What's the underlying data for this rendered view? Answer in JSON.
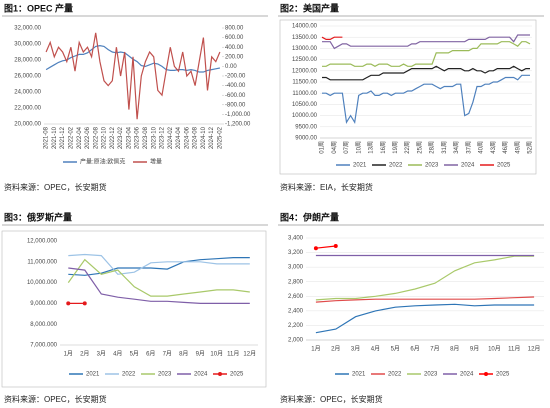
{
  "chart_data": [
    {
      "type": "line",
      "title": "图1：OPEC 产量",
      "source": "资料来源：OPEC，长安期货",
      "grid": false,
      "categories": [
        "2021-08",
        null,
        "2021-10",
        null,
        "2021-12",
        null,
        "2022-02",
        null,
        "2022-04",
        null,
        "2022-06",
        null,
        "2022-08",
        null,
        "2022-10",
        null,
        "2022-12",
        null,
        "2023-02",
        null,
        "2023-04",
        null,
        "2023-06",
        null,
        "2023-08",
        null,
        "2023-10",
        null,
        "2023-12",
        null,
        "2024-02",
        null,
        "2024-04",
        null,
        "2024-06",
        null,
        "2024-08",
        null,
        "2024-10",
        null,
        "2024-12",
        null,
        "2025-02"
      ],
      "ylim": [
        20000,
        32000
      ],
      "yticks": [
        {
          "value": 20000,
          "label": "20,000.00"
        },
        {
          "value": 22000,
          "label": "22,000.00"
        },
        {
          "value": 24000,
          "label": "24,000.00"
        },
        {
          "value": 26000,
          "label": "26,000.00"
        },
        {
          "value": 28000,
          "label": "28,000.00"
        },
        {
          "value": 30000,
          "label": "30,000.00"
        },
        {
          "value": 32000,
          "label": "32,000.00"
        }
      ],
      "y2lim": [
        -1200,
        800
      ],
      "y2ticks": [
        {
          "value": -1200,
          "label": "-1,200.00"
        },
        {
          "value": -1000,
          "label": "-1,000.00"
        },
        {
          "value": -800,
          "label": "-800.00"
        },
        {
          "value": -600,
          "label": "-600.00"
        },
        {
          "value": -400,
          "label": "-400.00"
        },
        {
          "value": -200,
          "label": "-200.00"
        },
        {
          "value": 0,
          "label": "0.00"
        },
        {
          "value": 200,
          "label": "200.00"
        },
        {
          "value": 400,
          "label": "400.00"
        },
        {
          "value": 600,
          "label": "600.00"
        },
        {
          "value": 800,
          "label": "800.00"
        }
      ],
      "series": [
        {
          "name": "产量:原油:欧佩克",
          "color": "#4f81bd",
          "values": [
            26800,
            27100,
            27400,
            27700,
            27900,
            28000,
            28300,
            28500,
            28700,
            28700,
            28900,
            29300,
            29700,
            29800,
            29700,
            29300,
            29000,
            28900,
            29000,
            28900,
            28500,
            28100,
            27800,
            27300,
            27200,
            27400,
            27600,
            27500,
            27200,
            26800,
            26700,
            26700,
            26800,
            26800,
            26700,
            26800,
            26700,
            26500,
            26500,
            26700,
            26800,
            26900,
            27000
          ]
        },
        {
          "name": "增量",
          "color": "#c0504d",
          "axis": "y2",
          "values": [
            300,
            500,
            200,
            400,
            300,
            100,
            400,
            -100,
            500,
            300,
            400,
            200,
            700,
            100,
            -300,
            -400,
            -300,
            400,
            -200,
            300,
            -900,
            200,
            -1100,
            -200,
            100,
            300,
            200,
            -500,
            -600,
            -100,
            400,
            0,
            -100,
            300,
            -200,
            -100,
            -400,
            100,
            600,
            -500,
            200,
            100,
            300
          ]
        }
      ]
    },
    {
      "type": "line",
      "title": "图2：美国产量",
      "source": "资料来源：EIA，长安期货",
      "grid": true,
      "categories": [
        "01周",
        null,
        null,
        "04周",
        null,
        null,
        "07周",
        null,
        null,
        "10周",
        null,
        null,
        "13周",
        null,
        null,
        "16周",
        null,
        null,
        "19周",
        null,
        null,
        "22周",
        null,
        null,
        "25周",
        null,
        null,
        "28周",
        null,
        null,
        "31周",
        null,
        null,
        "34周",
        null,
        null,
        "37周",
        null,
        null,
        "40周",
        null,
        null,
        "43周",
        null,
        null,
        "46周",
        null,
        null,
        "49周",
        null,
        null,
        "52周"
      ],
      "ylim": [
        9000,
        14000
      ],
      "yticks": [
        {
          "value": 9000,
          "label": "9000.00"
        },
        {
          "value": 9500,
          "label": "9500.00"
        },
        {
          "value": 10000,
          "label": "10000.00"
        },
        {
          "value": 10500,
          "label": "10500.00"
        },
        {
          "value": 11000,
          "label": "11000.00"
        },
        {
          "value": 11500,
          "label": "11500.00"
        },
        {
          "value": 12000,
          "label": "12000.00"
        },
        {
          "value": 12500,
          "label": "12500.00"
        },
        {
          "value": 13000,
          "label": "13000.00"
        },
        {
          "value": 13500,
          "label": "13500.00"
        },
        {
          "value": 14000,
          "label": "14000.00"
        }
      ],
      "series": [
        {
          "name": "2021",
          "color": "#4f81bd",
          "values": [
            11000,
            11000,
            10900,
            11000,
            11000,
            11000,
            9700,
            10000,
            9700,
            10900,
            11000,
            11000,
            11100,
            10900,
            10900,
            11000,
            11000,
            10900,
            11000,
            11000,
            11000,
            11100,
            11100,
            11200,
            11300,
            11400,
            11400,
            11400,
            11300,
            11200,
            11300,
            11300,
            11300,
            11400,
            11400,
            10000,
            10100,
            10600,
            11300,
            11300,
            11400,
            11400,
            11500,
            11500,
            11600,
            11700,
            11700,
            11700,
            11600,
            11800,
            11800,
            11800
          ]
        },
        {
          "name": "2022",
          "color": "#222222",
          "values": [
            11700,
            11700,
            11600,
            11600,
            11600,
            11600,
            11600,
            11600,
            11600,
            11600,
            11600,
            11700,
            11800,
            11800,
            11800,
            11900,
            11900,
            11900,
            11900,
            11900,
            11900,
            12000,
            12100,
            12100,
            12100,
            12100,
            12100,
            12100,
            12200,
            12100,
            12000,
            12100,
            12100,
            12100,
            12100,
            12000,
            12000,
            12100,
            12000,
            12000,
            11900,
            12000,
            12000,
            12100,
            12100,
            12100,
            12100,
            12200,
            12100,
            12000,
            12100,
            12100
          ]
        },
        {
          "name": "2023",
          "color": "#9bbb59",
          "values": [
            12200,
            12200,
            12300,
            12300,
            12300,
            12300,
            12300,
            12300,
            12200,
            12200,
            12200,
            12300,
            12300,
            12200,
            12300,
            12300,
            12300,
            12200,
            12200,
            12200,
            12300,
            12200,
            12200,
            12300,
            12300,
            12300,
            12300,
            12300,
            12800,
            12800,
            12800,
            12800,
            12900,
            12900,
            12900,
            12900,
            12900,
            13000,
            13000,
            13200,
            13200,
            13200,
            13200,
            13200,
            13300,
            13300,
            13300,
            13200,
            13100,
            13300,
            13300,
            13200
          ]
        },
        {
          "name": "2024",
          "color": "#8064a2",
          "values": [
            13300,
            13300,
            13300,
            13000,
            13100,
            13200,
            13200,
            13100,
            13100,
            13100,
            13100,
            13100,
            13100,
            13100,
            13100,
            13100,
            13100,
            13100,
            13100,
            13100,
            13100,
            13100,
            13200,
            13200,
            13300,
            13300,
            13300,
            13300,
            13300,
            13300,
            13300,
            13300,
            13300,
            13300,
            13300,
            13300,
            13400,
            13400,
            13400,
            13400,
            13400,
            13500,
            13500,
            13500,
            13500,
            13500,
            13500,
            13300,
            13600,
            13600,
            13600,
            13600
          ]
        },
        {
          "name": "2025",
          "color": "#e41a1c",
          "values": [
            13500,
            13400,
            13400,
            13500,
            13500,
            13500,
            null,
            null,
            null,
            null,
            null,
            null,
            null,
            null,
            null,
            null,
            null,
            null,
            null,
            null,
            null,
            null,
            null,
            null,
            null,
            null,
            null,
            null,
            null,
            null,
            null,
            null,
            null,
            null,
            null,
            null,
            null,
            null,
            null,
            null,
            null,
            null,
            null,
            null,
            null,
            null,
            null,
            null,
            null,
            null,
            null,
            null
          ]
        }
      ]
    },
    {
      "type": "line",
      "title": "图3：俄罗斯产量",
      "source": "资料来源：OPEC，长安期货",
      "grid": false,
      "categories": [
        "1月",
        "2月",
        "3月",
        "4月",
        "5月",
        "6月",
        "7月",
        "8月",
        "9月",
        "10月",
        "11月",
        "12月"
      ],
      "ylim": [
        7000,
        12000
      ],
      "yticks": [
        {
          "value": 7000,
          "label": "7,000.000"
        },
        {
          "value": 8000,
          "label": "8,000.000"
        },
        {
          "value": 9000,
          "label": "9,000.000"
        },
        {
          "value": 10000,
          "label": "10,000.000"
        },
        {
          "value": 11000,
          "label": "11,000.000"
        },
        {
          "value": 12000,
          "label": "12,000.000"
        }
      ],
      "series": [
        {
          "name": "2021",
          "color": "#2e75b6",
          "values": [
            10400,
            10350,
            10450,
            10700,
            10700,
            10700,
            10650,
            11000,
            11100,
            11150,
            11200,
            11200
          ]
        },
        {
          "name": "2022",
          "color": "#9dc3e6",
          "values": [
            11300,
            11350,
            11300,
            10400,
            10500,
            10950,
            11000,
            11000,
            11000,
            10900,
            10900,
            10900
          ]
        },
        {
          "name": "2023",
          "color": "#a9c96a",
          "values": [
            10000,
            11100,
            10400,
            10600,
            9800,
            9350,
            9350,
            9450,
            9550,
            9650,
            9650,
            9550
          ]
        },
        {
          "name": "2024",
          "color": "#7f5fa8",
          "values": [
            10700,
            10600,
            9450,
            9300,
            9200,
            9100,
            9100,
            9050,
            9000,
            9000,
            9000,
            9000
          ]
        },
        {
          "name": "2025",
          "color": "#e41a1c",
          "marker": "circle",
          "values": [
            9000,
            9000,
            null,
            null,
            null,
            null,
            null,
            null,
            null,
            null,
            null,
            null
          ]
        }
      ]
    },
    {
      "type": "line",
      "title": "图4：伊朗产量",
      "source": "资料来源：OPEC，长安期货",
      "grid": true,
      "categories": [
        "1月",
        "2月",
        "3月",
        "4月",
        "5月",
        "6月",
        "7月",
        "8月",
        "9月",
        "10月",
        "11月",
        "12月"
      ],
      "ylim": [
        2000,
        3400
      ],
      "yticks": [
        {
          "value": 2000,
          "label": "2,000"
        },
        {
          "value": 2200,
          "label": "2,200"
        },
        {
          "value": 2400,
          "label": "2,400"
        },
        {
          "value": 2600,
          "label": "2,600"
        },
        {
          "value": 2800,
          "label": "2,800"
        },
        {
          "value": 3000,
          "label": "3,000"
        },
        {
          "value": 3200,
          "label": "3,200"
        },
        {
          "value": 3400,
          "label": "3,400"
        }
      ],
      "series": [
        {
          "name": "2021",
          "color": "#2e75b6",
          "values": [
            2100,
            2150,
            2320,
            2400,
            2450,
            2470,
            2480,
            2490,
            2470,
            2480,
            2480,
            2480
          ]
        },
        {
          "name": "2022",
          "color": "#e04b4b",
          "values": [
            2520,
            2540,
            2550,
            2560,
            2560,
            2560,
            2560,
            2560,
            2560,
            2570,
            2580,
            2590
          ]
        },
        {
          "name": "2023",
          "color": "#a9c96a",
          "values": [
            2550,
            2570,
            2570,
            2600,
            2640,
            2700,
            2780,
            2950,
            3060,
            3100,
            3150,
            3150
          ]
        },
        {
          "name": "2024",
          "color": "#7f5fa8",
          "values": [
            3160,
            3160,
            3160,
            3160,
            3160,
            3160,
            3160,
            3160,
            3160,
            3160,
            3160,
            3160
          ]
        },
        {
          "name": "2025",
          "color": "#ff0000",
          "marker": "circle",
          "values": [
            3260,
            3290,
            null,
            null,
            null,
            null,
            null,
            null,
            null,
            null,
            null,
            null
          ]
        }
      ]
    }
  ]
}
